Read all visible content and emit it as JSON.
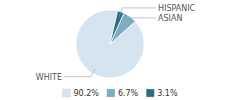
{
  "chart_data": {
    "type": "pie",
    "categories": [
      "WHITE",
      "ASIAN",
      "HISPANIC"
    ],
    "values": [
      90.2,
      6.7,
      3.1
    ],
    "value_labels": [
      "90.2%",
      "6.7%",
      "3.1%"
    ],
    "colors": [
      "#d6e4ef",
      "#7aaec0",
      "#2e6b8a"
    ],
    "legend": "bottom"
  }
}
